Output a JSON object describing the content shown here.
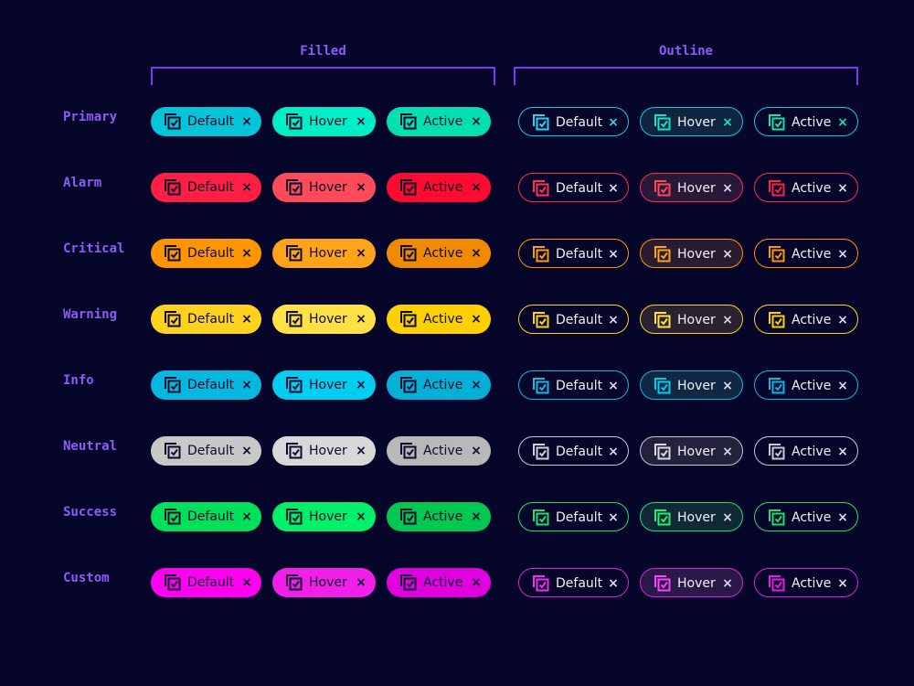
{
  "groups": {
    "filled": "Filled",
    "outline": "Outline"
  },
  "states": [
    "Default",
    "Hover",
    "Active"
  ],
  "close_glyph": "×",
  "icon": "stacked-checkbox-icon",
  "rows": [
    {
      "label": "Primary",
      "filled": [
        "#05c3d9",
        "#00eec7",
        "#00e0b0"
      ],
      "outline": "#12c7e6",
      "outline_icon": [
        "#2ad4f0",
        "#15e3c3",
        "#15e3a8"
      ],
      "outline_hover_bg": "#0f2540",
      "close_tint": [
        "#2ad4f0",
        "#15e3c3",
        "#15e3a8"
      ]
    },
    {
      "label": "Alarm",
      "filled": [
        "#ff1f44",
        "#ff4a5a",
        "#ff0a30"
      ],
      "outline": "#ff2d4a",
      "outline_icon": [
        "#ff3355",
        "#ff4a5a",
        "#ff2244"
      ],
      "outline_hover_bg": "#2a1838",
      "close_tint": []
    },
    {
      "label": "Critical",
      "filled": [
        "#ff9500",
        "#ffa31a",
        "#f08a00"
      ],
      "outline": "#ff9500",
      "outline_icon": [
        "#ff9d10",
        "#ffa31a",
        "#ff9500"
      ],
      "outline_hover_bg": "#2a1c30",
      "close_tint": []
    },
    {
      "label": "Warning",
      "filled": [
        "#ffd21f",
        "#ffe045",
        "#ffd000"
      ],
      "outline": "#ffd21f",
      "outline_icon": [
        "#ffd21f",
        "#ffe045",
        "#ffd000"
      ],
      "outline_hover_bg": "#2a2230",
      "close_tint": []
    },
    {
      "label": "Info",
      "filled": [
        "#06b8e0",
        "#00cdf0",
        "#05b0d6"
      ],
      "outline": "#10b6e3",
      "outline_icon": [
        "#1ab8e5",
        "#00cdf0",
        "#10b6e3"
      ],
      "outline_hover_bg": "#0f2844",
      "close_tint": []
    },
    {
      "label": "Neutral",
      "filled": [
        "#c8c8c8",
        "#d8d8d8",
        "#b8b8b8"
      ],
      "outline": "#c8c8d0",
      "outline_icon": [
        "#d0d0d8",
        "#d8d8e0",
        "#c8c8d0"
      ],
      "outline_hover_bg": "#22223c",
      "close_tint": []
    },
    {
      "label": "Success",
      "filled": [
        "#00e05a",
        "#00f06a",
        "#00c850"
      ],
      "outline": "#1ee06a",
      "outline_icon": [
        "#1ee06a",
        "#22f070",
        "#1ee06a"
      ],
      "outline_hover_bg": "#0f2a36",
      "close_tint": []
    },
    {
      "label": "Custom",
      "filled": [
        "#ff00f0",
        "#f020e8",
        "#e000e0"
      ],
      "outline": "#e020e0",
      "outline_icon": [
        "#f030f0",
        "#ff40ff",
        "#e020e0"
      ],
      "outline_hover_bg": "#2a1848",
      "close_tint": []
    }
  ]
}
